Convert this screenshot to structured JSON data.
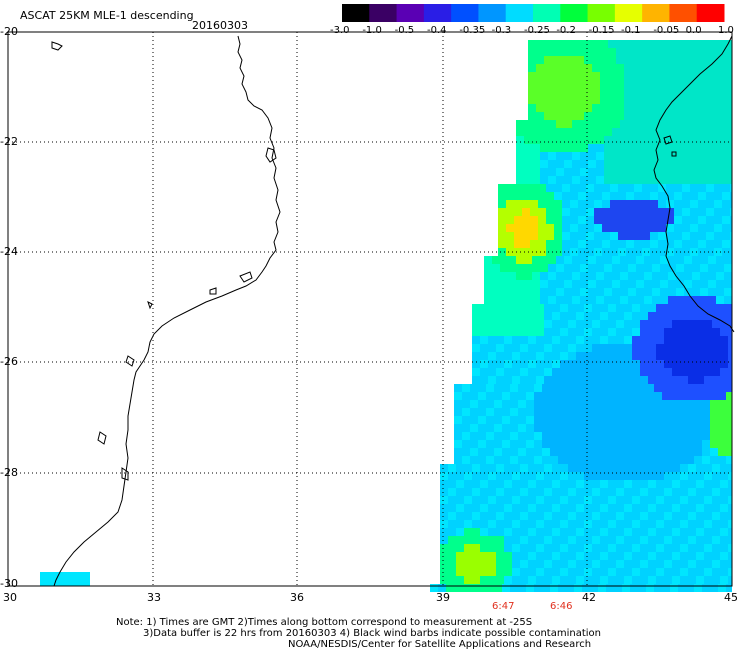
{
  "header": {
    "product": "ASCAT 25KM MLE-1 descending",
    "date": "20160303"
  },
  "colorbar": {
    "labels": [
      "-3.0",
      "-1.0",
      "-0.5",
      "-0.4",
      "-0.35",
      "-0.3",
      "-0.25",
      "-0.2",
      "-0.15",
      "-0.1",
      "-0.05",
      "0.0",
      "1.0"
    ],
    "colors": [
      "#000000",
      "#3a0064",
      "#5a00b4",
      "#2a1ee6",
      "#0050ff",
      "#0096ff",
      "#00dcff",
      "#00ffb4",
      "#00ff3c",
      "#78ff00",
      "#e6ff00",
      "#ffb400",
      "#ff5000",
      "#ff0000"
    ]
  },
  "axes": {
    "lat_labels": [
      "-20",
      "-22",
      "-24",
      "-26",
      "-28",
      "-30"
    ],
    "lon_labels": [
      "30",
      "33",
      "36",
      "39",
      "42",
      "45"
    ]
  },
  "times": {
    "t1": "6:47",
    "t2": "6:46",
    "color": "#e0301e"
  },
  "notes": {
    "line1": "Note: 1) Times are GMT 2)Times along bottom correspond to measurement at -25S",
    "line2": "3)Data buffer is 22 hrs from 20160303 4) Black wind barbs indicate possible contamination",
    "line3": "NOAA/NESDIS/Center for Satellite Applications and Research"
  }
}
